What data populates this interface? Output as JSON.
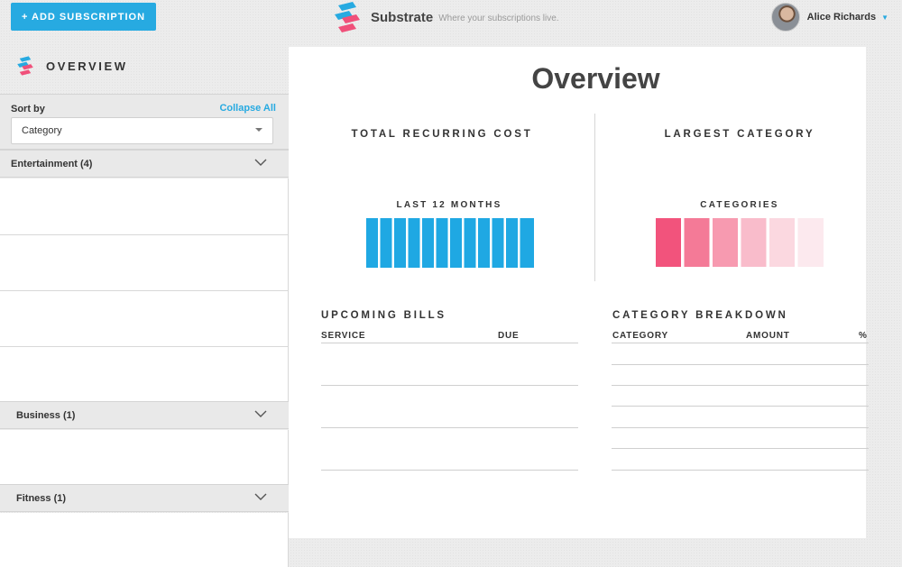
{
  "header": {
    "add_button_label": "+ ADD SUBSCRIPTION",
    "brand_name": "Substrate",
    "brand_tagline": "Where your subscriptions live.",
    "user_name": "Alice Richards"
  },
  "sidebar": {
    "title": "OVERVIEW",
    "sort_label": "Sort by",
    "collapse_all_label": "Collapse All",
    "sort_value": "Category",
    "categories": [
      {
        "label": "Entertainment (4)"
      },
      {
        "label": "Business (1)"
      },
      {
        "label": "Fitness (1)"
      }
    ]
  },
  "main": {
    "title": "Overview",
    "total_cost": {
      "title": "TOTAL RECURRING COST",
      "caption": "LAST 12 MONTHS"
    },
    "largest_category": {
      "title": "LARGEST CATEGORY",
      "caption": "CATEGORIES"
    },
    "upcoming_bills": {
      "title": "UPCOMING BILLS",
      "columns": [
        "SERVICE",
        "DUE"
      ]
    },
    "category_breakdown": {
      "title": "CATEGORY BREAKDOWN",
      "columns": [
        "CATEGORY",
        "AMOUNT",
        "%"
      ]
    }
  },
  "colors": {
    "accent": "#27aae1",
    "brand_pink": "#f0507a",
    "bar_blue": "#1fa8e3",
    "pink_shades": [
      "#f2537c",
      "#f47a97",
      "#f79ab0",
      "#f9bccb",
      "#fbd8e0",
      "#fce9ee"
    ]
  }
}
